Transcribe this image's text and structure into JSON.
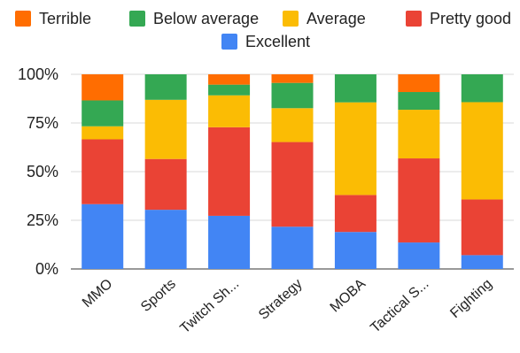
{
  "chart_data": {
    "type": "bar",
    "stacked": true,
    "percent": true,
    "categories": [
      "MMO",
      "Sports",
      "Twitch Sh...",
      "Strategy",
      "MOBA",
      "Tactical S...",
      "Fighting"
    ],
    "series": [
      {
        "name": "Excellent",
        "color": "#4285f4",
        "values": [
          33.3,
          30.4,
          27.3,
          21.7,
          19.0,
          13.6,
          7.1
        ]
      },
      {
        "name": "Pretty good",
        "color": "#ea4335",
        "values": [
          33.3,
          26.1,
          45.5,
          43.5,
          19.0,
          43.2,
          28.6
        ]
      },
      {
        "name": "Average",
        "color": "#fbbc04",
        "values": [
          6.7,
          30.4,
          16.4,
          17.4,
          47.6,
          25.0,
          50.0
        ]
      },
      {
        "name": "Below average",
        "color": "#34a853",
        "values": [
          13.3,
          13.1,
          5.5,
          13.0,
          14.4,
          9.1,
          14.3
        ]
      },
      {
        "name": "Terrible",
        "color": "#ff6d01",
        "values": [
          13.4,
          0.0,
          5.3,
          4.4,
          0.0,
          9.1,
          0.0
        ]
      }
    ],
    "legend_order": [
      "Terrible",
      "Below average",
      "Average",
      "Pretty good",
      "Excellent"
    ],
    "legend_position": "top",
    "ylim": [
      0,
      100
    ],
    "yticks": [
      "0%",
      "25%",
      "50%",
      "75%",
      "100%"
    ],
    "ytick_values": [
      0,
      25,
      50,
      75,
      100
    ],
    "xlabel": "",
    "ylabel": "",
    "title": "",
    "grid": true
  }
}
